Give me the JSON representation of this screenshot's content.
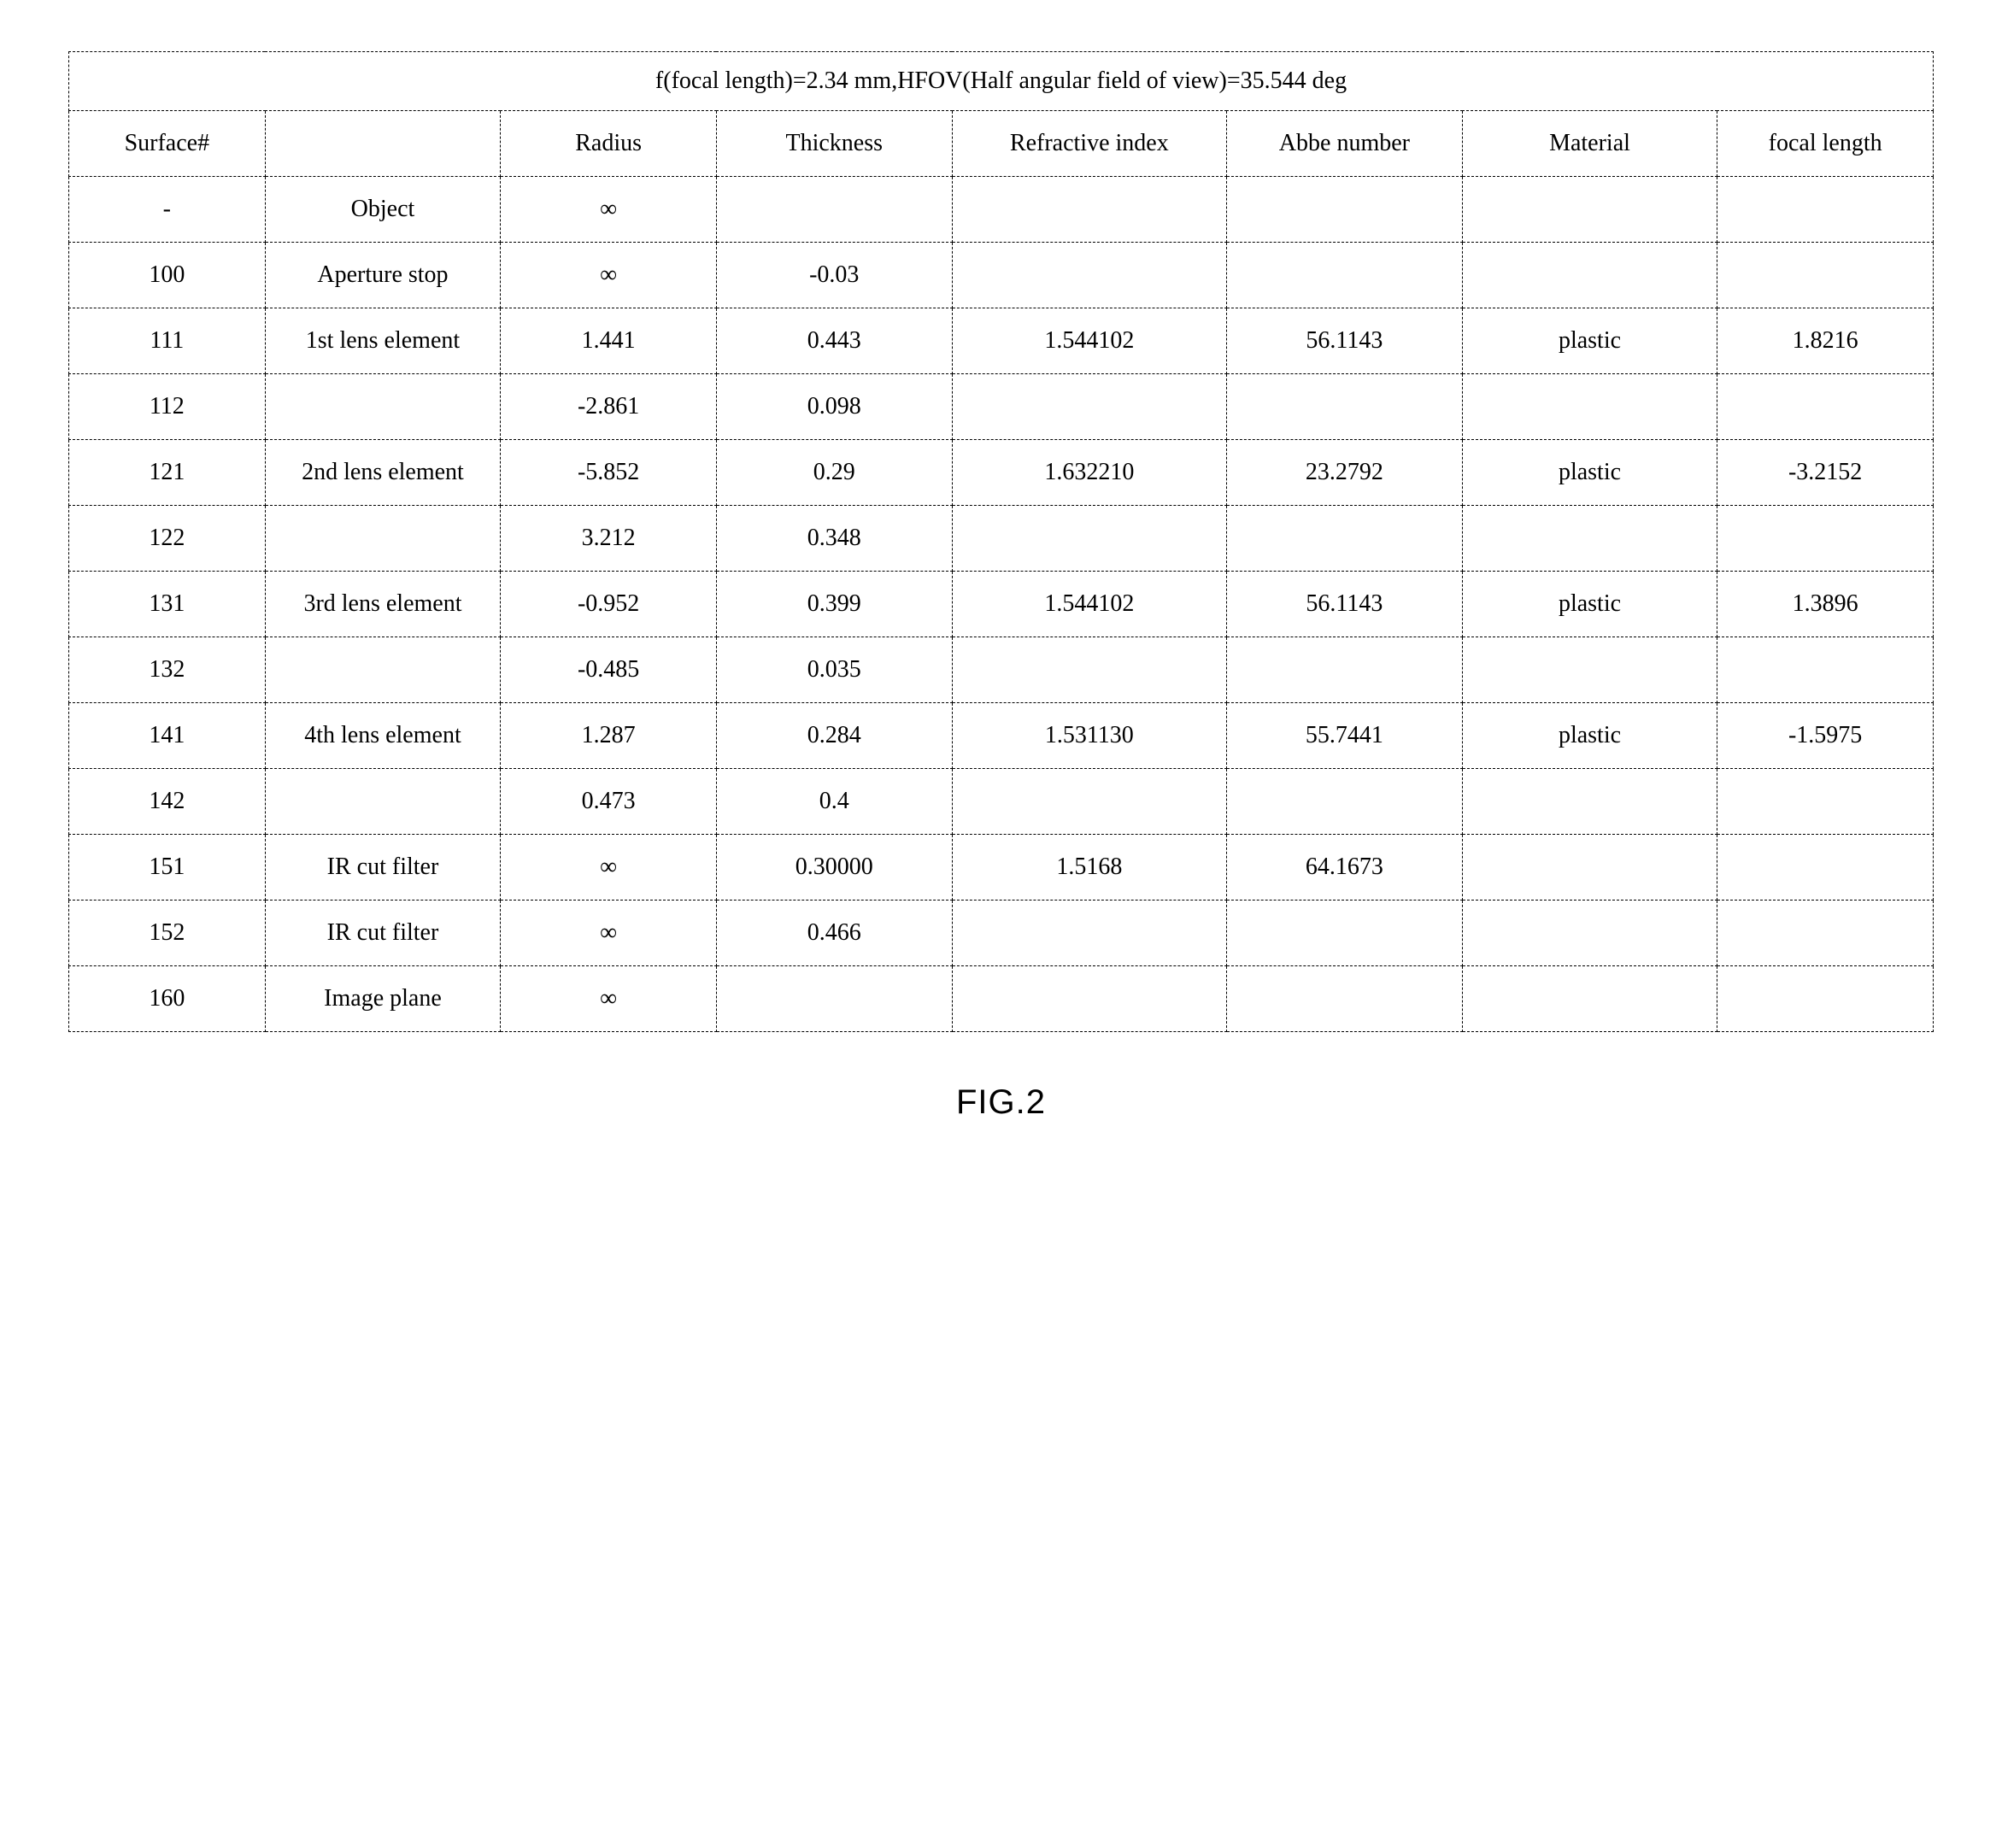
{
  "table": {
    "title": "f(focal length)=2.34 mm,HFOV(Half angular field of view)=35.544 deg",
    "columns": [
      "Surface#",
      "",
      "Radius",
      "Thickness",
      "Refractive index",
      "Abbe number",
      "Material",
      "focal length"
    ],
    "rows": [
      [
        "-",
        "Object",
        "∞",
        "",
        "",
        "",
        "",
        ""
      ],
      [
        "100",
        "Aperture stop",
        "∞",
        "-0.03",
        "",
        "",
        "",
        ""
      ],
      [
        "111",
        "1st lens element",
        "1.441",
        "0.443",
        "1.544102",
        "56.1143",
        "plastic",
        "1.8216"
      ],
      [
        "112",
        "",
        "-2.861",
        "0.098",
        "",
        "",
        "",
        ""
      ],
      [
        "121",
        "2nd lens element",
        "-5.852",
        "0.29",
        "1.632210",
        "23.2792",
        "plastic",
        "-3.2152"
      ],
      [
        "122",
        "",
        "3.212",
        "0.348",
        "",
        "",
        "",
        ""
      ],
      [
        "131",
        "3rd lens element",
        "-0.952",
        "0.399",
        "1.544102",
        "56.1143",
        "plastic",
        "1.3896"
      ],
      [
        "132",
        "",
        "-0.485",
        "0.035",
        "",
        "",
        "",
        ""
      ],
      [
        "141",
        "4th lens element",
        "1.287",
        "0.284",
        "1.531130",
        "55.7441",
        "plastic",
        "-1.5975"
      ],
      [
        "142",
        "",
        "0.473",
        "0.4",
        "",
        "",
        "",
        ""
      ],
      [
        "151",
        "IR cut filter",
        "∞",
        "0.30000",
        "1.5168",
        "64.1673",
        "",
        ""
      ],
      [
        "152",
        "IR cut filter",
        "∞",
        "0.466",
        "",
        "",
        "",
        ""
      ],
      [
        "160",
        "Image plane",
        "∞",
        "",
        "",
        "",
        "",
        ""
      ]
    ],
    "caption": "FIG.2",
    "border_color": "#000000",
    "background_color": "#ffffff",
    "text_color": "#000000",
    "header_fontsize": 28,
    "cell_fontsize": 28,
    "caption_fontsize": 40,
    "font_family": "Times New Roman",
    "caption_font_family": "Arial",
    "border_style": "dashed",
    "column_widths_pct": [
      10,
      12,
      11,
      12,
      14,
      12,
      13,
      11
    ]
  }
}
